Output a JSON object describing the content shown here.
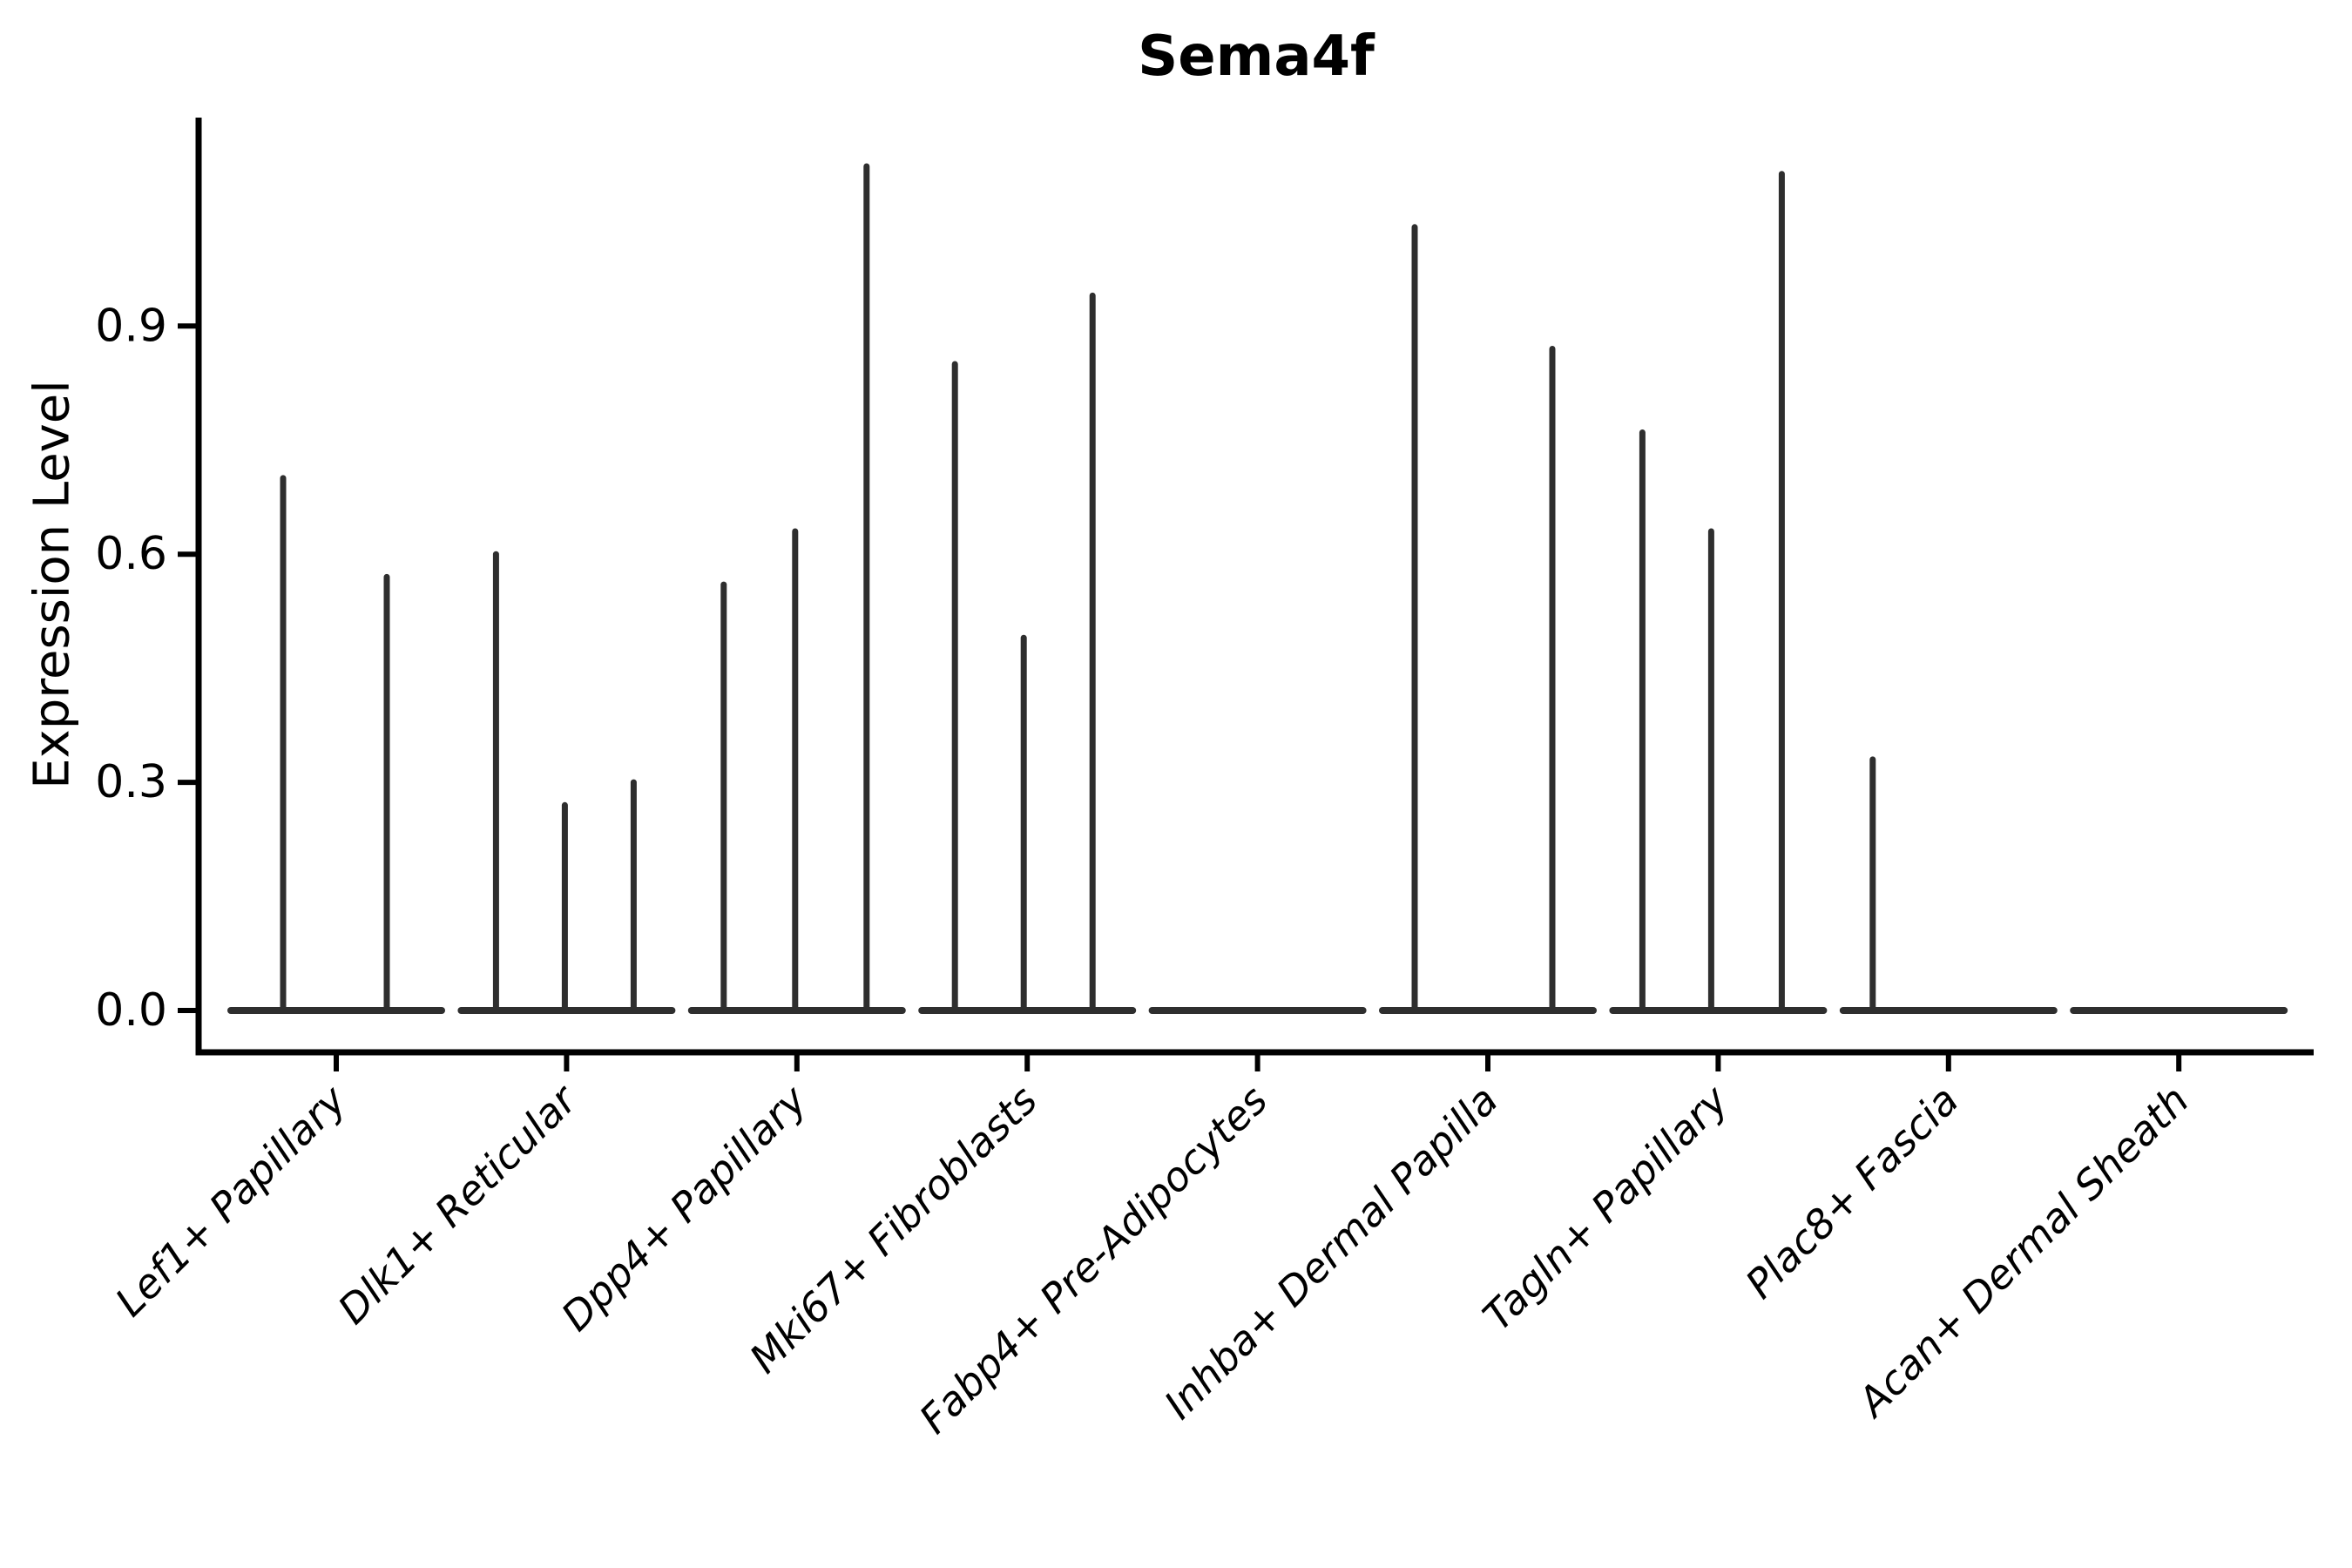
{
  "title": "Sema4f",
  "y_axis": {
    "label": "Expression Level",
    "tick_labels": [
      "0.0",
      "0.3",
      "0.6",
      "0.9"
    ],
    "tick_values": [
      0.0,
      0.3,
      0.6,
      0.9
    ]
  },
  "x_axis": {
    "categories": [
      "Lef1+ Papillary",
      "Dlk1+ Reticular",
      "Dpp4+ Papillary",
      "Mki67+ Fibroblasts",
      "Fabp4+ Pre-Adipocytes",
      "Inhba+ Dermal Papilla",
      "Tagln+ Papillary",
      "Plac8+ Fascia",
      "Acan+ Dermal Sheath"
    ]
  },
  "colors": {
    "ink": "#000000",
    "violin": "#2e2e2e",
    "background": "#ffffff"
  },
  "chart_data": {
    "type": "violin",
    "title": "Sema4f",
    "xlabel": "",
    "ylabel": "Expression Level",
    "ylim": [
      -0.06,
      1.17
    ],
    "yticks": [
      0.0,
      0.3,
      0.6,
      0.9
    ],
    "grid": false,
    "legend_position": "none",
    "categories": [
      "Lef1+ Papillary",
      "Dlk1+ Reticular",
      "Dpp4+ Papillary",
      "Mki67+ Fibroblasts",
      "Fabp4+ Pre-Adipocytes",
      "Inhba+ Dermal Papilla",
      "Tagln+ Papillary",
      "Plac8+ Fascia",
      "Acan+ Dermal Sheath"
    ],
    "series": [
      {
        "category": "Lef1+ Papillary",
        "spikes": [
          {
            "dx": -61,
            "value": 0.7
          },
          {
            "dx": 58,
            "value": 0.57
          }
        ]
      },
      {
        "category": "Dlk1+ Reticular",
        "spikes": [
          {
            "dx": -81,
            "value": 0.6
          },
          {
            "dx": -2,
            "value": 0.27
          },
          {
            "dx": 77,
            "value": 0.3
          }
        ]
      },
      {
        "category": "Dpp4+ Papillary",
        "spikes": [
          {
            "dx": -84,
            "value": 0.56
          },
          {
            "dx": -2,
            "value": 0.63
          },
          {
            "dx": 80,
            "value": 1.11
          }
        ]
      },
      {
        "category": "Mki67+ Fibroblasts",
        "spikes": [
          {
            "dx": -83,
            "value": 0.85
          },
          {
            "dx": -4,
            "value": 0.49
          },
          {
            "dx": 75,
            "value": 0.94
          }
        ]
      },
      {
        "category": "Fabp4+ Pre-Adipocytes",
        "spikes": []
      },
      {
        "category": "Inhba+ Dermal Papilla",
        "spikes": [
          {
            "dx": -84,
            "value": 1.03
          },
          {
            "dx": 74,
            "value": 0.87
          }
        ]
      },
      {
        "category": "Tagln+ Papillary",
        "spikes": [
          {
            "dx": -87,
            "value": 0.76
          },
          {
            "dx": -8,
            "value": 0.63
          },
          {
            "dx": 73,
            "value": 1.1
          }
        ]
      },
      {
        "category": "Plac8+ Fascia",
        "spikes": [
          {
            "dx": -87,
            "value": 0.33
          }
        ]
      },
      {
        "category": "Acan+ Dermal Sheath",
        "spikes": []
      }
    ]
  }
}
